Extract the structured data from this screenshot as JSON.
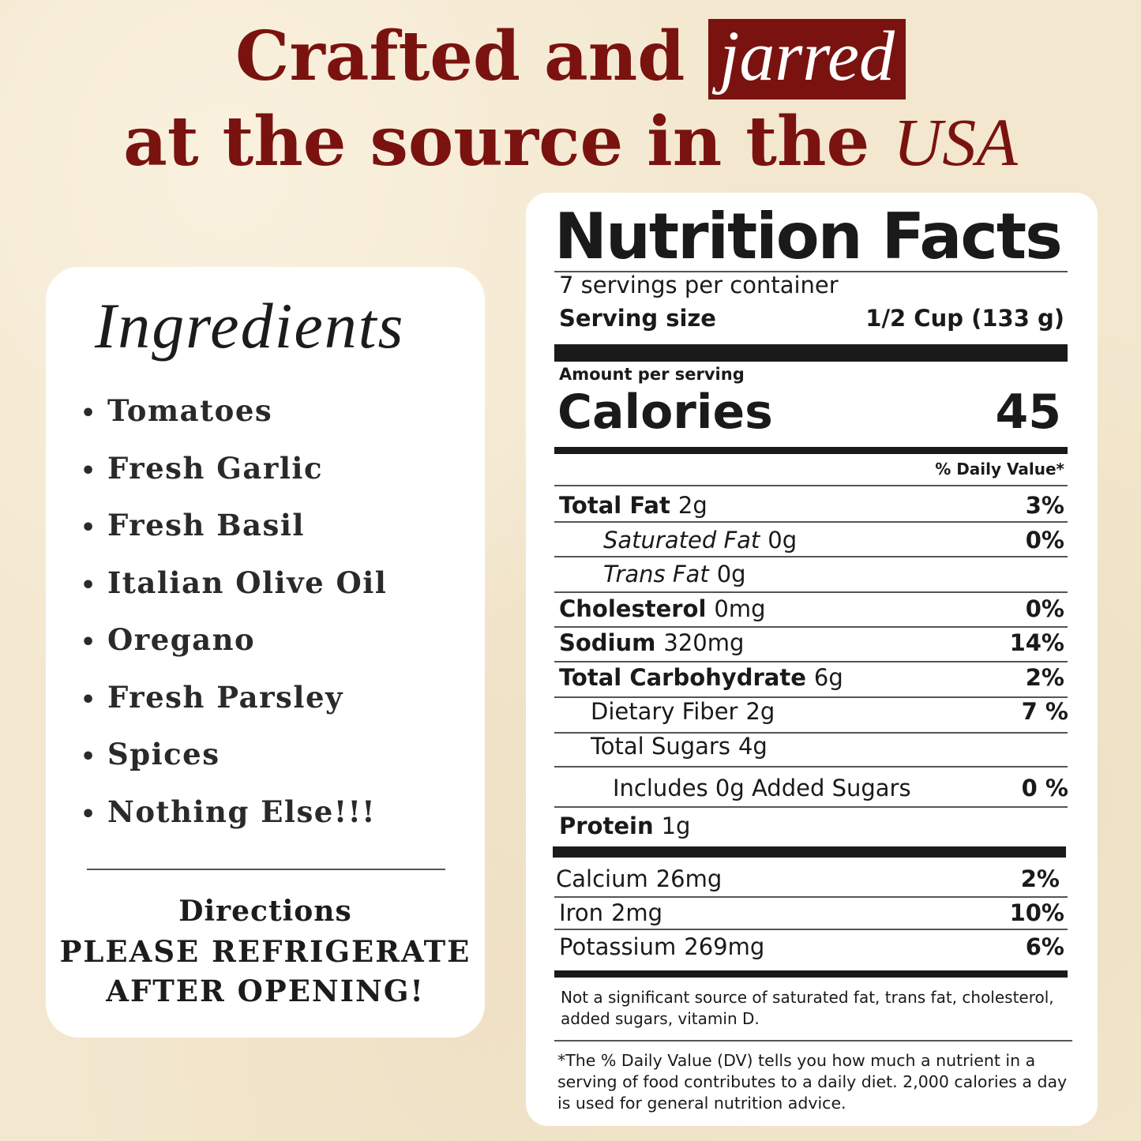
{
  "headline": {
    "line1_prefix": "Crafted and",
    "line1_box": "jarred",
    "line2_prefix": "at the source in the",
    "line2_italic": "USA"
  },
  "colors": {
    "accent": "#7a1310",
    "background": "#f3e7cf",
    "card": "#ffffff"
  },
  "ingredients": {
    "title": "Ingredients",
    "items": [
      "Tomatoes",
      "Fresh Garlic",
      "Fresh Basil",
      "Italian Olive Oil",
      "Oregano",
      "Fresh Parsley",
      "Spices",
      "Nothing Else!!!"
    ]
  },
  "directions": {
    "title": "Directions",
    "line1": "PLEASE REFRIGERATE",
    "line2": "AFTER OPENING!"
  },
  "nutrition": {
    "title": "Nutrition Facts",
    "servings": "7 servings per container",
    "serving_size_label": "Serving size",
    "serving_size_value": "1/2 Cup (133 g)",
    "amount_label": "Amount per serving",
    "calories_label": "Calories",
    "calories_value": "45",
    "dv_header": "% Daily Value*",
    "rows": [
      {
        "label": "Total Fat",
        "amount": "2g",
        "pct": "3%"
      },
      {
        "label": "Saturated Fat",
        "amount": "0g",
        "pct": "0%"
      },
      {
        "label": "Trans Fat",
        "amount": "0g",
        "pct": ""
      },
      {
        "label": "Cholesterol",
        "amount": "0mg",
        "pct": "0%"
      },
      {
        "label": "Sodium",
        "amount": "320mg",
        "pct": "14%"
      },
      {
        "label": "Total Carbohydrate",
        "amount": "6g",
        "pct": "2%"
      },
      {
        "label": "Dietary Fiber",
        "amount": "2g",
        "pct": "7 %"
      },
      {
        "label": "Total Sugars",
        "amount": "4g",
        "pct": ""
      },
      {
        "label": "Includes 0g Added Sugars",
        "amount": "",
        "pct": "0 %"
      },
      {
        "label": "Protein",
        "amount": "1g",
        "pct": ""
      }
    ],
    "minerals": [
      {
        "label": "Calcium",
        "amount": "26mg",
        "pct": "2%"
      },
      {
        "label": "Iron",
        "amount": "2mg",
        "pct": "10%"
      },
      {
        "label": "Potassium",
        "amount": "269mg",
        "pct": "6%"
      }
    ],
    "note1": "Not a significant source of saturated fat, trans fat, cholesterol, added sugars, vitamin D.",
    "note2": "*The % Daily Value (DV) tells you how much a nutrient in a serving of food contributes to a daily diet. 2,000 calories a day is used for general nutrition advice."
  }
}
